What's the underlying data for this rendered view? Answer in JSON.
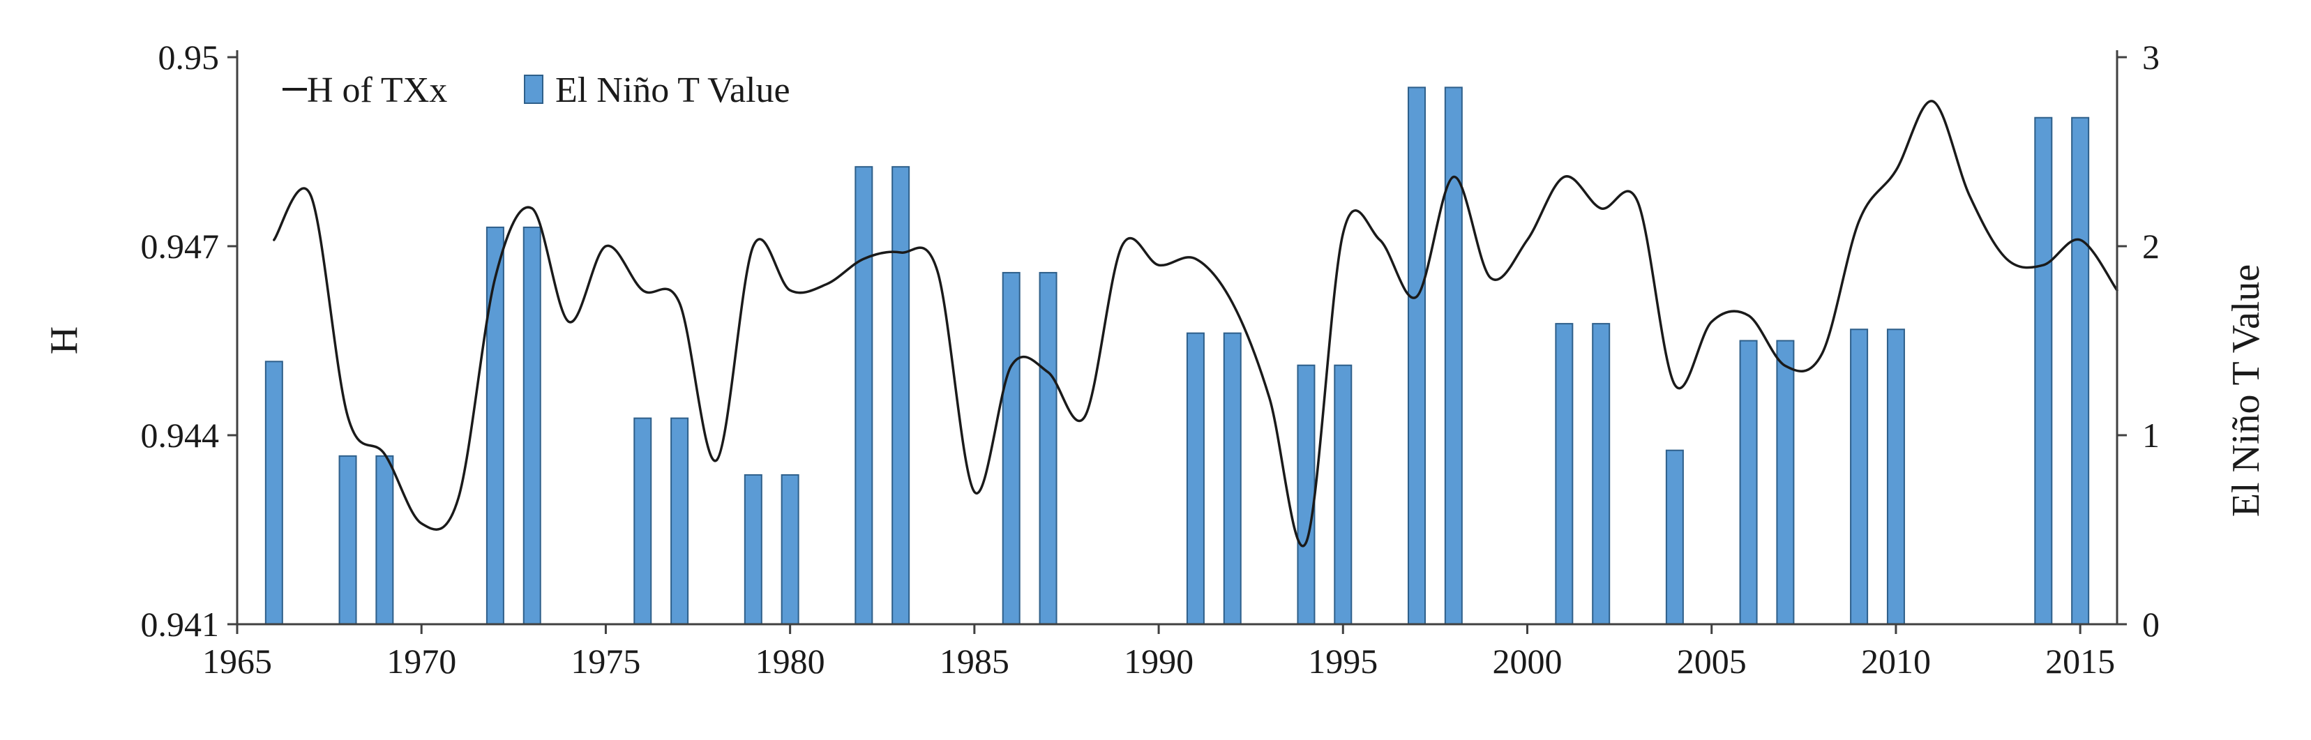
{
  "chart_data": {
    "type": "bar+line",
    "title": "",
    "xlabel": "",
    "ylabel": "H",
    "y2label": "El Niño T Value",
    "xlim": [
      1965,
      2016
    ],
    "ylim": [
      0.941,
      0.95
    ],
    "y2lim": [
      0,
      3
    ],
    "x_ticks": [
      "1965",
      "1970",
      "1975",
      "1980",
      "1985",
      "1990",
      "1995",
      "2000",
      "2005",
      "2010",
      "2015"
    ],
    "y_ticks": [
      "0.941",
      "0.944",
      "0.947",
      "0.95"
    ],
    "y2_ticks": [
      "0",
      "1",
      "2",
      "3"
    ],
    "grid": false,
    "legend_position": "top-left",
    "legend": [
      "H of TXx",
      "El Niño T Value"
    ],
    "series": [
      {
        "name": "H of TXx",
        "type": "line",
        "axis": "left",
        "color": "#1a1a1a",
        "points": [
          [
            1966,
            0.9471
          ],
          [
            1967,
            0.9478
          ],
          [
            1968,
            0.9443
          ],
          [
            1969,
            0.9437
          ],
          [
            1970,
            0.9426
          ],
          [
            1971,
            0.943
          ],
          [
            1972,
            0.9465
          ],
          [
            1973,
            0.9476
          ],
          [
            1974,
            0.9458
          ],
          [
            1975,
            0.947
          ],
          [
            1976,
            0.9463
          ],
          [
            1977,
            0.9461
          ],
          [
            1978,
            0.9436
          ],
          [
            1979,
            0.947
          ],
          [
            1980,
            0.9463
          ],
          [
            1981,
            0.9464
          ],
          [
            1982,
            0.9468
          ],
          [
            1983,
            0.9469
          ],
          [
            1984,
            0.9466
          ],
          [
            1985,
            0.9431
          ],
          [
            1986,
            0.9451
          ],
          [
            1987,
            0.945
          ],
          [
            1988,
            0.9443
          ],
          [
            1989,
            0.947
          ],
          [
            1990,
            0.9467
          ],
          [
            1991,
            0.9468
          ],
          [
            1992,
            0.9461
          ],
          [
            1993,
            0.9446
          ],
          [
            1994,
            0.9423
          ],
          [
            1995,
            0.9472
          ],
          [
            1996,
            0.9471
          ],
          [
            1997,
            0.9462
          ],
          [
            1998,
            0.9481
          ],
          [
            1999,
            0.9465
          ],
          [
            2000,
            0.9471
          ],
          [
            2001,
            0.9481
          ],
          [
            2002,
            0.9476
          ],
          [
            2003,
            0.9477
          ],
          [
            2004,
            0.9448
          ],
          [
            2005,
            0.9458
          ],
          [
            2006,
            0.9459
          ],
          [
            2007,
            0.9451
          ],
          [
            2008,
            0.9453
          ],
          [
            2009,
            0.9474
          ],
          [
            2010,
            0.9482
          ],
          [
            2011,
            0.9493
          ],
          [
            2012,
            0.9478
          ],
          [
            2013,
            0.9468
          ],
          [
            2014,
            0.9467
          ],
          [
            2015,
            0.9471
          ],
          [
            2016,
            0.9463
          ]
        ]
      },
      {
        "name": "El Niño T Value",
        "type": "bar",
        "axis": "right",
        "color": "#5b9bd5",
        "points": [
          [
            1966,
            1.39
          ],
          [
            1968,
            0.89
          ],
          [
            1969,
            0.89
          ],
          [
            1972,
            2.1
          ],
          [
            1973,
            2.1
          ],
          [
            1976,
            1.09
          ],
          [
            1977,
            1.09
          ],
          [
            1979,
            0.79
          ],
          [
            1980,
            0.79
          ],
          [
            1982,
            2.42
          ],
          [
            1983,
            2.42
          ],
          [
            1986,
            1.86
          ],
          [
            1987,
            1.86
          ],
          [
            1991,
            1.54
          ],
          [
            1992,
            1.54
          ],
          [
            1994,
            1.37
          ],
          [
            1995,
            1.37
          ],
          [
            1997,
            2.84
          ],
          [
            1998,
            2.84
          ],
          [
            2001,
            1.59
          ],
          [
            2002,
            1.59
          ],
          [
            2004,
            0.92
          ],
          [
            2006,
            1.5
          ],
          [
            2007,
            1.5
          ],
          [
            2009,
            1.56
          ],
          [
            2010,
            1.56
          ],
          [
            2014,
            2.68
          ],
          [
            2015,
            2.68
          ]
        ]
      }
    ]
  }
}
